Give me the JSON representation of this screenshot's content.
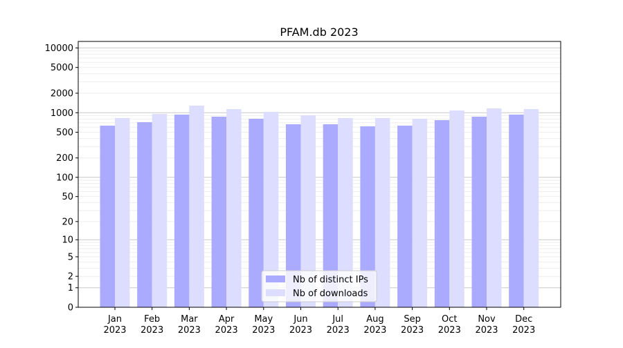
{
  "chart_data": {
    "type": "bar",
    "title": "PFAM.db 2023",
    "xlabel": "",
    "ylabel": "",
    "yscale": "symlog",
    "ylim": [
      0,
      15000
    ],
    "yticks": [
      0,
      1,
      2,
      5,
      10,
      20,
      50,
      100,
      200,
      500,
      1000,
      2000,
      5000,
      10000
    ],
    "grid": true,
    "legend_position": "bottom-center",
    "categories": [
      "Jan\n2023",
      "Feb\n2023",
      "Mar\n2023",
      "Apr\n2023",
      "May\n2023",
      "Jun\n2023",
      "Jul\n2023",
      "Aug\n2023",
      "Sep\n2023",
      "Oct\n2023",
      "Nov\n2023",
      "Dec\n2023"
    ],
    "series": [
      {
        "name": "Nb of distinct IPs",
        "color": "#aaaaff",
        "values": [
          632,
          715,
          936,
          869,
          808,
          664,
          664,
          617,
          632,
          769,
          869,
          936
        ]
      },
      {
        "name": "Nb of downloads",
        "color": "#ddddff",
        "values": [
          828,
          959,
          1288,
          1138,
          1032,
          914,
          828,
          828,
          808,
          1084,
          1167,
          1138
        ]
      }
    ]
  }
}
